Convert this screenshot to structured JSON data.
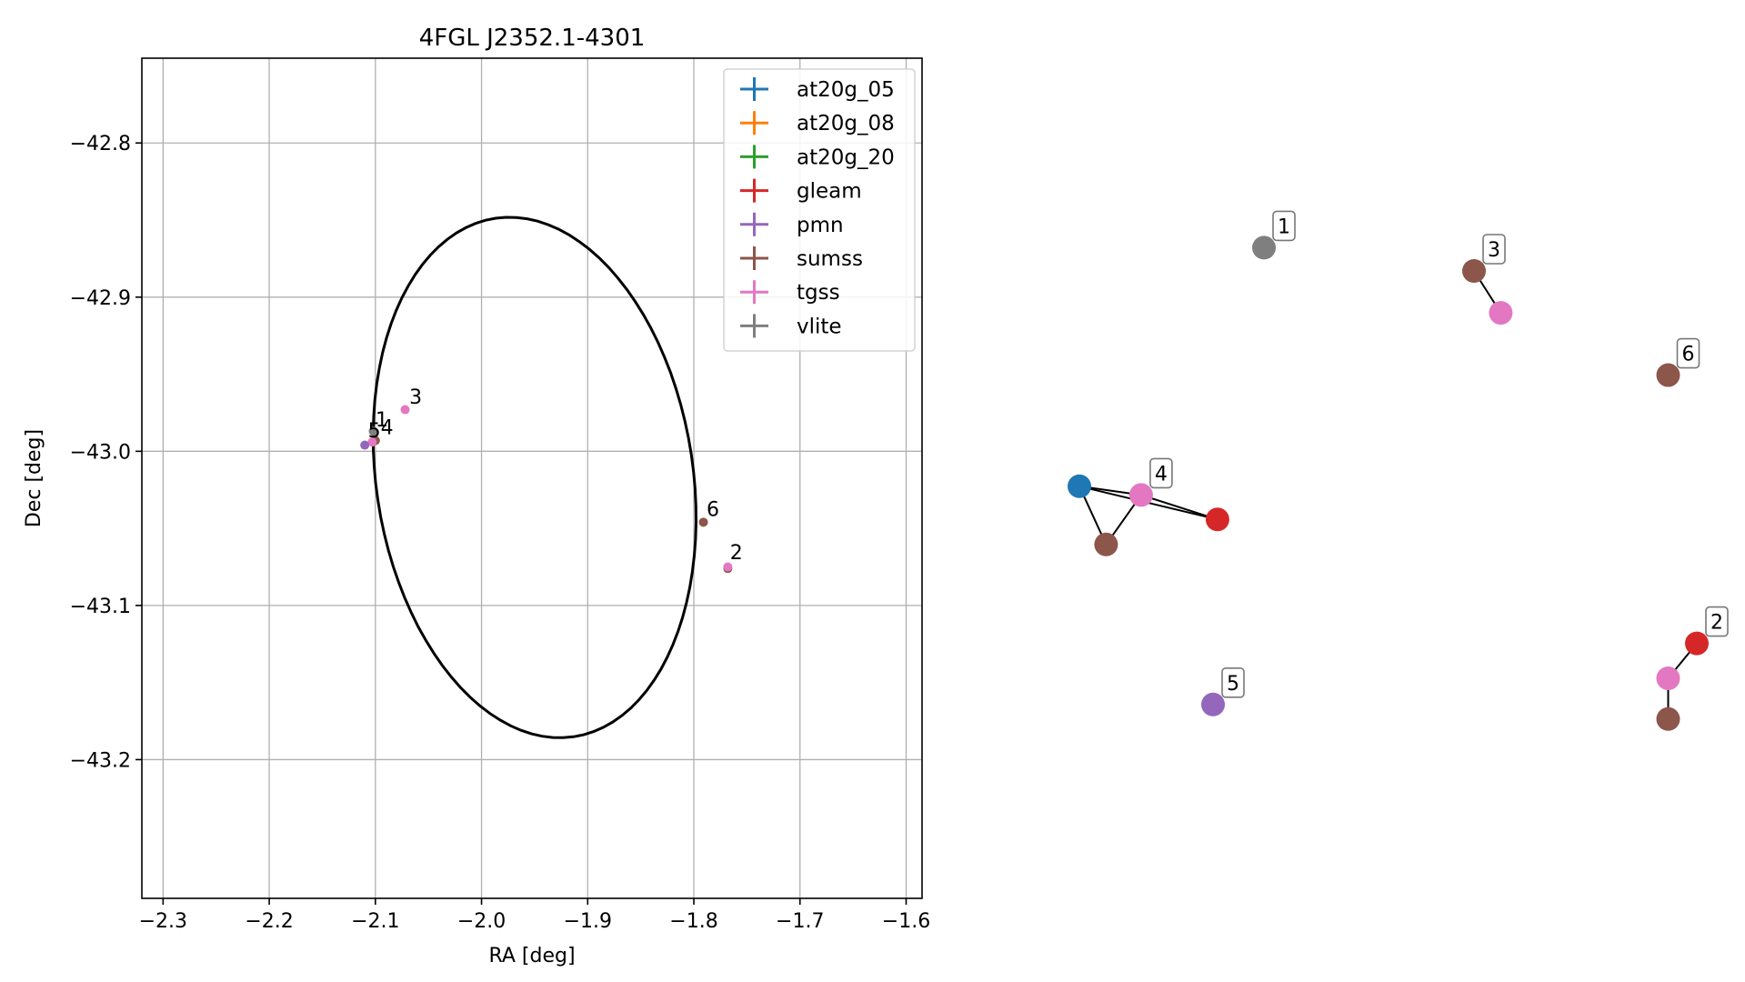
{
  "chart_data": [
    {
      "type": "scatter",
      "title": "4FGL J2352.1-4301",
      "xlabel": "RA [deg]",
      "ylabel": "Dec [deg]",
      "xlim": [
        -2.32,
        -1.585
      ],
      "ylim": [
        -43.29,
        -42.745
      ],
      "xticks": [
        -2.3,
        -2.2,
        -2.1,
        -2.0,
        -1.9,
        -1.8,
        -1.7,
        -1.6
      ],
      "xtick_labels": [
        "−2.3",
        "−2.2",
        "−2.1",
        "−2.0",
        "−1.9",
        "−1.8",
        "−1.7",
        "−1.6"
      ],
      "yticks": [
        -42.8,
        -42.9,
        -43.0,
        -43.1,
        -43.2
      ],
      "ytick_labels": [
        "−42.8",
        "−42.9",
        "−43.0",
        "−43.1",
        "−43.2"
      ],
      "grid": true,
      "legend_position": "top-right",
      "legend": [
        {
          "name": "at20g_05",
          "color": "#1f77b4"
        },
        {
          "name": "at20g_08",
          "color": "#ff7f0e"
        },
        {
          "name": "at20g_20",
          "color": "#2ca02c"
        },
        {
          "name": "gleam",
          "color": "#d62728"
        },
        {
          "name": "pmn",
          "color": "#9467bd"
        },
        {
          "name": "sumss",
          "color": "#8c564b"
        },
        {
          "name": "tgss",
          "color": "#e377c2"
        },
        {
          "name": "vlite",
          "color": "#7f7f7f"
        }
      ],
      "ellipse": {
        "center_ra": -1.95,
        "center_dec": -43.017,
        "semi_major": 0.175,
        "semi_minor": 0.145,
        "angle_deg": 118,
        "color": "#000000"
      },
      "points": [
        {
          "catalog": "vlite",
          "ra": -2.102,
          "dec": -42.987,
          "color": "#7f7f7f"
        },
        {
          "catalog": "tgss",
          "ra": -2.072,
          "dec": -42.973,
          "color": "#e377c2"
        },
        {
          "catalog": "sumss",
          "ra": -2.1,
          "dec": -42.993,
          "color": "#8c564b"
        },
        {
          "catalog": "tgss",
          "ra": -2.103,
          "dec": -42.994,
          "color": "#e377c2"
        },
        {
          "catalog": "pmn",
          "ra": -2.11,
          "dec": -42.996,
          "color": "#9467bd"
        },
        {
          "catalog": "sumss",
          "ra": -1.791,
          "dec": -43.046,
          "color": "#8c564b"
        },
        {
          "catalog": "sumss",
          "ra": -1.768,
          "dec": -43.076,
          "color": "#8c564b"
        },
        {
          "catalog": "tgss",
          "ra": -1.768,
          "dec": -43.075,
          "color": "#e377c2"
        }
      ],
      "labels": [
        {
          "text": "1",
          "ra": -2.1,
          "dec": -42.984
        },
        {
          "text": "4",
          "ra": -2.095,
          "dec": -42.989
        },
        {
          "text": "5",
          "ra": -2.107,
          "dec": -42.991
        },
        {
          "text": "3",
          "ra": -2.068,
          "dec": -42.969
        },
        {
          "text": "6",
          "ra": -1.788,
          "dec": -43.042
        },
        {
          "text": "2",
          "ra": -1.766,
          "dec": -43.07
        }
      ]
    },
    {
      "type": "scatter",
      "title": "",
      "axes_visible": false,
      "xlim": [
        0,
        1
      ],
      "ylim": [
        0,
        1
      ],
      "nodes": [
        {
          "id": "n1",
          "x": 0.3,
          "y": 0.84,
          "color": "#7f7f7f"
        },
        {
          "id": "n3a",
          "x": 0.63,
          "y": 0.8,
          "color": "#8c564b"
        },
        {
          "id": "n3b",
          "x": 0.672,
          "y": 0.728,
          "color": "#e377c2"
        },
        {
          "id": "n6",
          "x": 0.935,
          "y": 0.621,
          "color": "#8c564b"
        },
        {
          "id": "n4a",
          "x": 0.01,
          "y": 0.43,
          "color": "#1f77b4"
        },
        {
          "id": "n4b",
          "x": 0.052,
          "y": 0.33,
          "color": "#8c564b"
        },
        {
          "id": "n4c",
          "x": 0.107,
          "y": 0.415,
          "color": "#e377c2"
        },
        {
          "id": "n4d",
          "x": 0.227,
          "y": 0.373,
          "color": "#d62728"
        },
        {
          "id": "n5",
          "x": 0.22,
          "y": 0.055,
          "color": "#9467bd"
        },
        {
          "id": "n2a",
          "x": 0.98,
          "y": 0.16,
          "color": "#d62728"
        },
        {
          "id": "n2b",
          "x": 0.935,
          "y": 0.1,
          "color": "#e377c2"
        },
        {
          "id": "n2c",
          "x": 0.935,
          "y": 0.03,
          "color": "#8c564b"
        }
      ],
      "edges": [
        [
          "n3a",
          "n3b"
        ],
        [
          "n4a",
          "n4b"
        ],
        [
          "n4b",
          "n4c"
        ],
        [
          "n4a",
          "n4c"
        ],
        [
          "n4c",
          "n4d"
        ],
        [
          "n4a",
          "n4d"
        ],
        [
          "n2a",
          "n2b"
        ],
        [
          "n2b",
          "n2c"
        ]
      ],
      "labels": [
        {
          "text": "1",
          "node": "n1"
        },
        {
          "text": "3",
          "node": "n3a"
        },
        {
          "text": "6",
          "node": "n6"
        },
        {
          "text": "4",
          "node": "n4c"
        },
        {
          "text": "5",
          "node": "n5"
        },
        {
          "text": "2",
          "node": "n2a"
        }
      ]
    }
  ]
}
